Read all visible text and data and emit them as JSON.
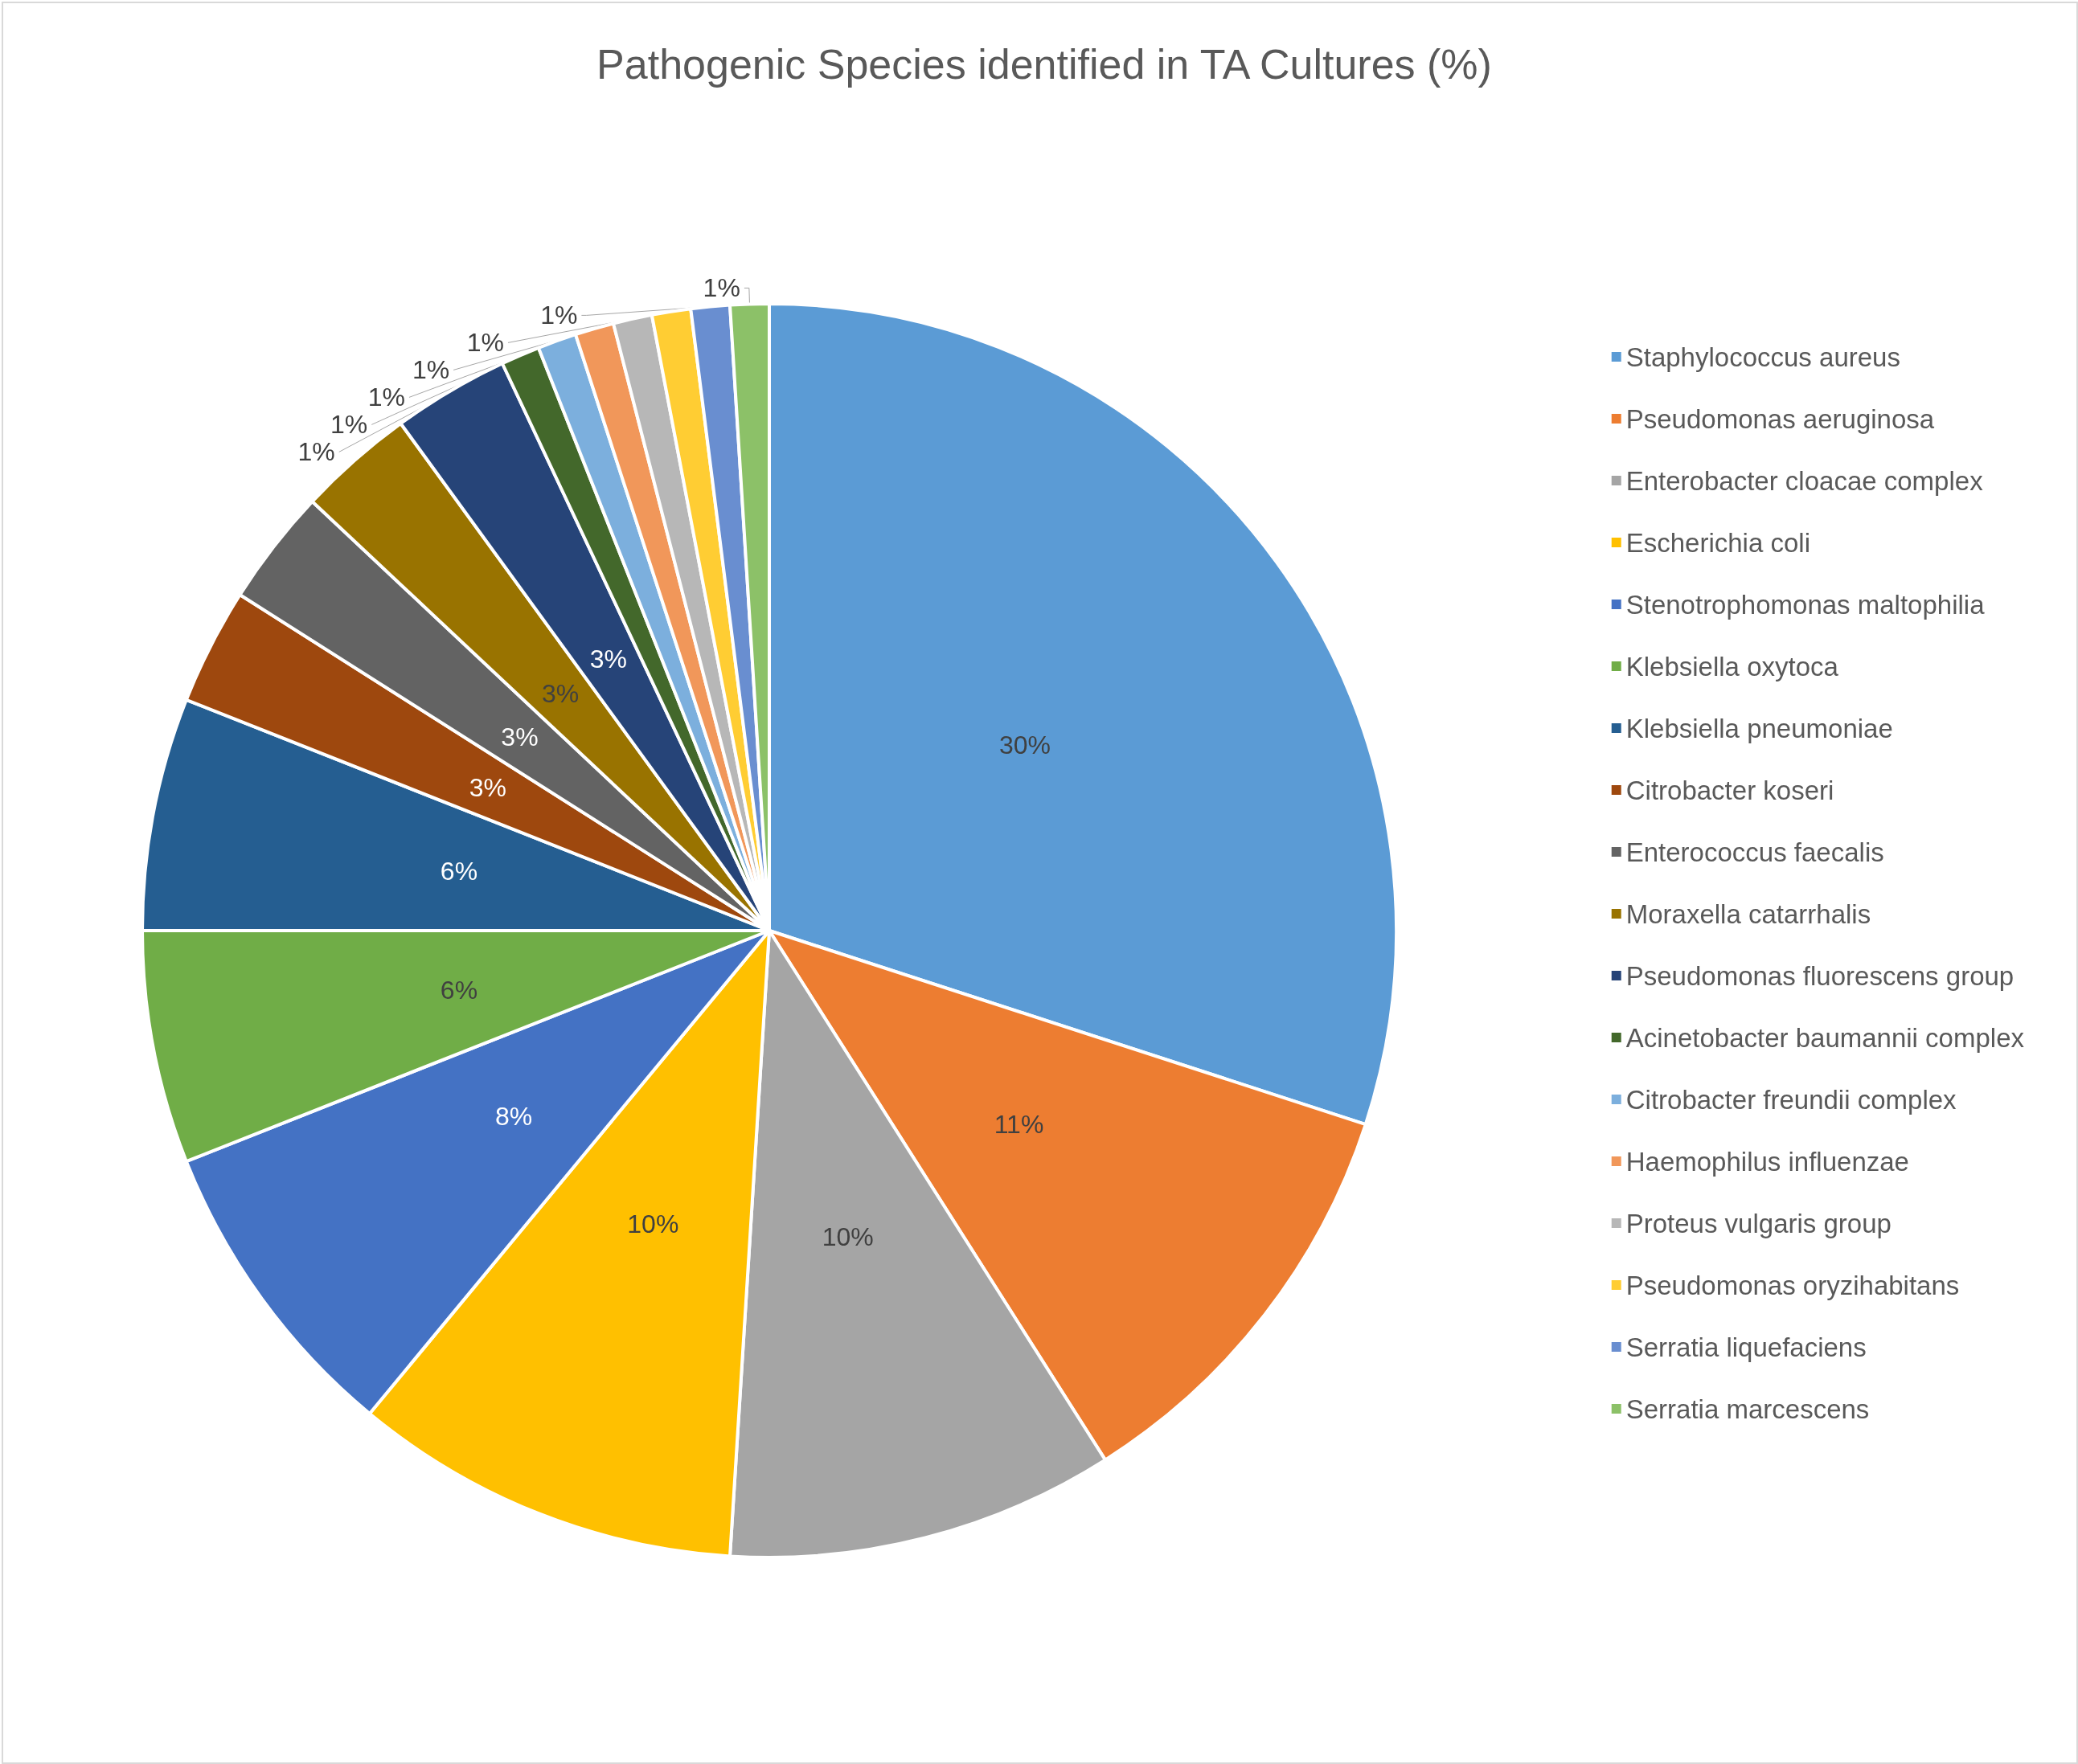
{
  "chart_data": {
    "type": "pie",
    "title": "Pathogenic Species identified in TA Cultures (%)",
    "categories": [
      "Staphylococcus aureus",
      "Pseudomonas aeruginosa",
      "Enterobacter cloacae complex",
      "Escherichia coli",
      "Stenotrophomonas maltophilia",
      "Klebsiella oxytoca",
      "Klebsiella pneumoniae",
      "Citrobacter koseri",
      "Enterococcus faecalis",
      "Moraxella catarrhalis",
      "Pseudomonas fluorescens group",
      "Acinetobacter baumannii complex",
      "Citrobacter freundii complex",
      "Haemophilus influenzae",
      "Proteus vulgaris group",
      "Pseudomonas oryzihabitans",
      "Serratia liquefaciens",
      "Serratia marcescens"
    ],
    "values": [
      30,
      11,
      10,
      10,
      8,
      6,
      6,
      3,
      3,
      3,
      3,
      1,
      1,
      1,
      1,
      1,
      1,
      1
    ],
    "value_labels": [
      "30%",
      "11%",
      "10%",
      "10%",
      "8%",
      "6%",
      "6%",
      "3%",
      "3%",
      "3%",
      "3%",
      "1%",
      "1%",
      "1%",
      "1%",
      "1%",
      "1%",
      "1%"
    ],
    "colors": [
      "#5b9bd5",
      "#ed7d31",
      "#a5a5a5",
      "#ffc000",
      "#4472c4",
      "#70ad47",
      "#255e91",
      "#9e480e",
      "#636363",
      "#997300",
      "#264478",
      "#43682b",
      "#7cafdd",
      "#f1975a",
      "#b7b7b7",
      "#ffcd33",
      "#698ed0",
      "#8cc168"
    ],
    "legend": "right"
  }
}
